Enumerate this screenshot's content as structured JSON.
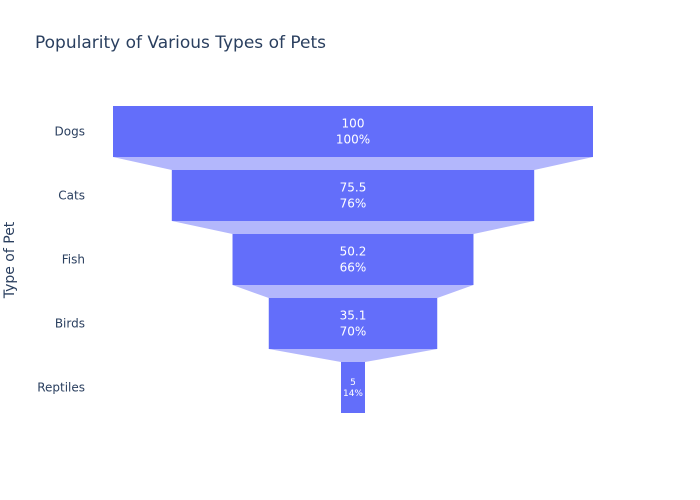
{
  "chart_data": {
    "type": "funnel",
    "title": "Popularity of Various Types of Pets",
    "ylabel": "Type of Pet",
    "categories": [
      "Dogs",
      "Cats",
      "Fish",
      "Birds",
      "Reptiles"
    ],
    "values": [
      100,
      75.5,
      50.2,
      35.1,
      5
    ],
    "percent_labels": [
      "100%",
      "76%",
      "66%",
      "70%",
      "14%"
    ],
    "colors": {
      "bar": "#636efa",
      "connector": "#b3b7fc",
      "text": "#2a3f5f",
      "label": "#ffffff"
    }
  }
}
